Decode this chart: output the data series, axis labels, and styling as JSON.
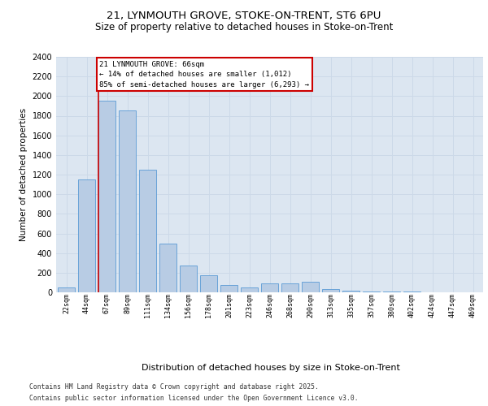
{
  "title1": "21, LYNMOUTH GROVE, STOKE-ON-TRENT, ST6 6PU",
  "title2": "Size of property relative to detached houses in Stoke-on-Trent",
  "xlabel": "Distribution of detached houses by size in Stoke-on-Trent",
  "ylabel": "Number of detached properties",
  "categories": [
    "22sqm",
    "44sqm",
    "67sqm",
    "89sqm",
    "111sqm",
    "134sqm",
    "156sqm",
    "178sqm",
    "201sqm",
    "223sqm",
    "246sqm",
    "268sqm",
    "290sqm",
    "313sqm",
    "335sqm",
    "357sqm",
    "380sqm",
    "402sqm",
    "424sqm",
    "447sqm",
    "469sqm"
  ],
  "values": [
    50,
    1150,
    1950,
    1850,
    1250,
    500,
    270,
    170,
    75,
    50,
    95,
    90,
    105,
    30,
    20,
    10,
    5,
    5,
    3,
    2,
    1
  ],
  "bar_color": "#b8cce4",
  "bar_edge_color": "#5b9bd5",
  "grid_color": "#ccd9e8",
  "bg_color": "#dce6f1",
  "annotation_text": "21 LYNMOUTH GROVE: 66sqm\n← 14% of detached houses are smaller (1,012)\n85% of semi-detached houses are larger (6,293) →",
  "ann_box_edge_color": "#cc0000",
  "vline_color": "#cc0000",
  "vline_index": 2,
  "ylim_max": 2400,
  "yticks": [
    0,
    200,
    400,
    600,
    800,
    1000,
    1200,
    1400,
    1600,
    1800,
    2000,
    2200,
    2400
  ],
  "footnote1": "Contains HM Land Registry data © Crown copyright and database right 2025.",
  "footnote2": "Contains public sector information licensed under the Open Government Licence v3.0."
}
